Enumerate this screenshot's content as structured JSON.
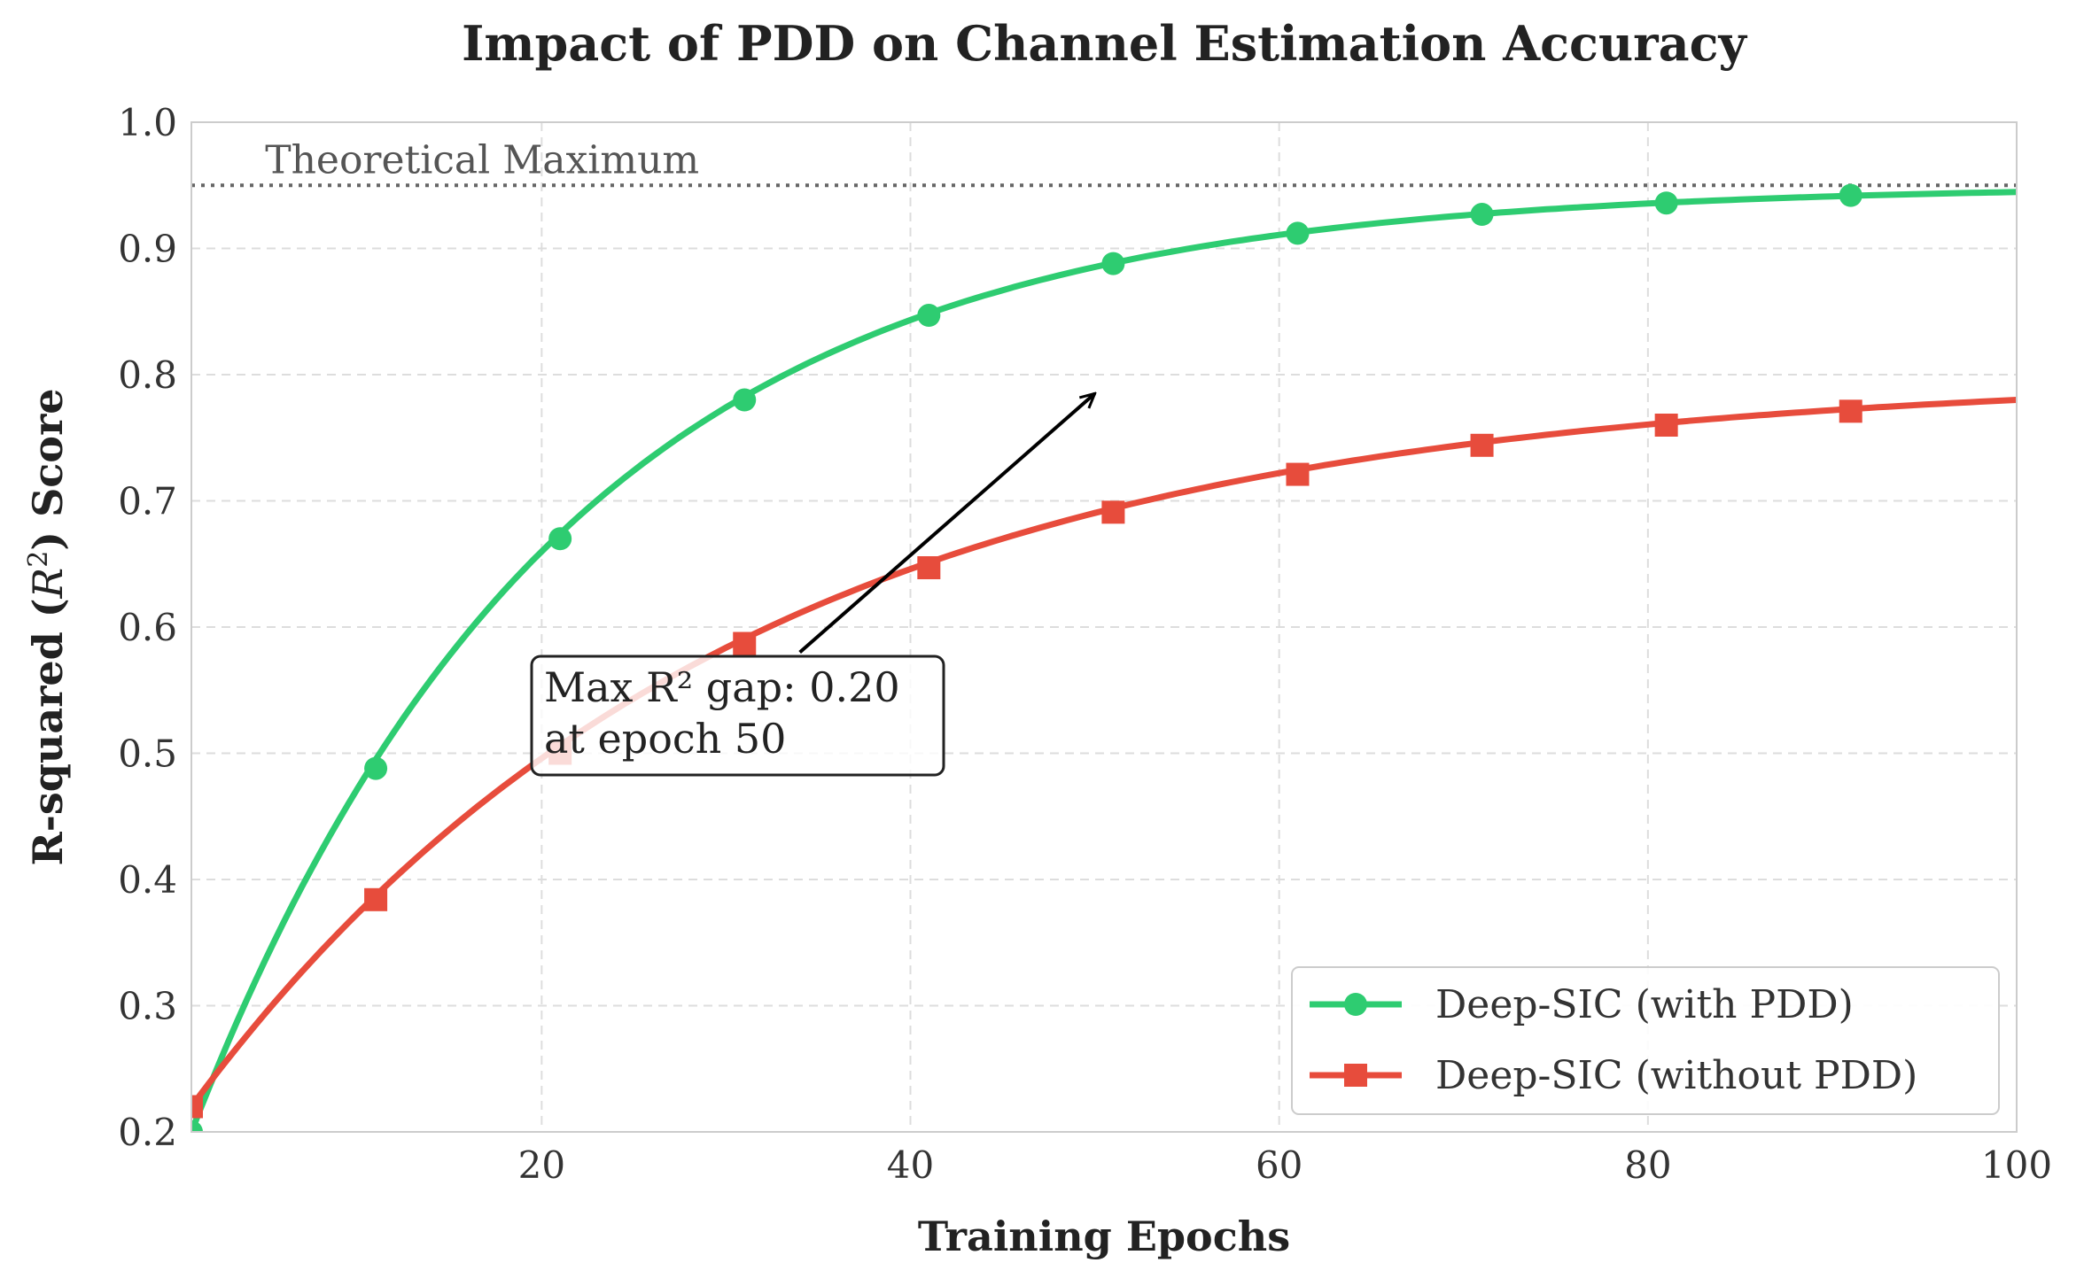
{
  "chart_data": {
    "type": "line",
    "title": "Impact of PDD on Channel Estimation Accuracy",
    "xlabel": "Training Epochs",
    "ylabel_prefix": "R-squared (",
    "ylabel_var": "R",
    "ylabel_sup": "2",
    "ylabel_suffix": ") Score",
    "xlim": [
      1,
      100
    ],
    "ylim": [
      0.2,
      1.0
    ],
    "xticks": [
      20,
      40,
      60,
      80,
      100
    ],
    "yticks": [
      0.2,
      0.3,
      0.4,
      0.5,
      0.6,
      0.7,
      0.8,
      0.9,
      1.0
    ],
    "grid": true,
    "legend_position": "lower-right",
    "reference_line": {
      "y": 0.95,
      "label": "Theoretical Maximum"
    },
    "series": [
      {
        "name": "Deep-SIC (with PDD)",
        "color": "#2ecc71",
        "marker": "circle",
        "x": [
          1,
          11,
          21,
          31,
          41,
          51,
          61,
          71,
          81,
          91
        ],
        "values": [
          0.2,
          0.488,
          0.67,
          0.78,
          0.847,
          0.888,
          0.912,
          0.927,
          0.936,
          0.942
        ],
        "curve": {
          "asymptote": 0.95,
          "start": 0.2,
          "rate": 0.05
        }
      },
      {
        "name": "Deep-SIC (without PDD)",
        "color": "#e74c3c",
        "marker": "square",
        "x": [
          1,
          11,
          21,
          31,
          41,
          51,
          61,
          71,
          81,
          91
        ],
        "values": [
          0.22,
          0.384,
          0.5,
          0.587,
          0.647,
          0.691,
          0.721,
          0.744,
          0.76,
          0.771
        ],
        "curve": {
          "asymptote": 0.8,
          "start": 0.22,
          "rate": 0.034
        }
      }
    ],
    "annotation": {
      "line1": "Max R² gap: 0.20",
      "line2": "at epoch 50",
      "arrow_from": [
        34,
        0.58
      ],
      "arrow_to": [
        50,
        0.785
      ]
    }
  }
}
